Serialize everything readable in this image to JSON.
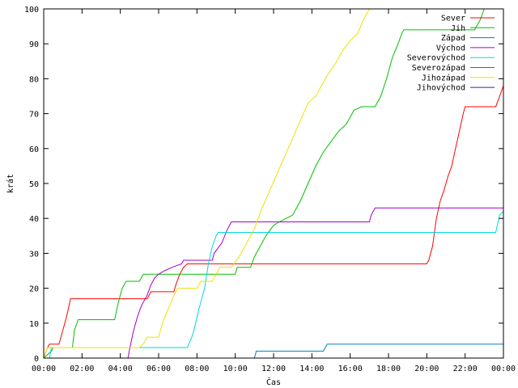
{
  "chart_data": {
    "type": "line",
    "xlabel": "Čas",
    "ylabel": "krát",
    "xlim": [
      0,
      24
    ],
    "ylim": [
      0,
      100
    ],
    "grid": false,
    "legend_position": "top-right",
    "x_ticks": [
      0,
      2,
      4,
      6,
      8,
      10,
      12,
      14,
      16,
      18,
      20,
      22,
      24
    ],
    "x_tick_labels": [
      "00:00",
      "02:00",
      "04:00",
      "06:00",
      "08:00",
      "10:00",
      "12:00",
      "14:00",
      "16:00",
      "18:00",
      "20:00",
      "22:00",
      "00:00"
    ],
    "y_ticks": [
      0,
      10,
      20,
      30,
      40,
      50,
      60,
      70,
      80,
      90,
      100
    ],
    "y_tick_labels": [
      "0",
      "10",
      "20",
      "30",
      "40",
      "50",
      "60",
      "70",
      "80",
      "90",
      "100"
    ],
    "series": [
      {
        "name": "Sever",
        "color": "#ff0000",
        "points": [
          [
            0,
            0
          ],
          [
            0.2,
            3
          ],
          [
            0.3,
            4
          ],
          [
            0.8,
            4
          ],
          [
            1.0,
            8
          ],
          [
            1.2,
            12
          ],
          [
            1.4,
            17
          ],
          [
            5.4,
            17
          ],
          [
            5.5,
            18
          ],
          [
            5.6,
            19
          ],
          [
            6.8,
            19
          ],
          [
            6.9,
            21
          ],
          [
            7.1,
            24
          ],
          [
            7.3,
            26
          ],
          [
            7.5,
            27
          ],
          [
            20.0,
            27
          ],
          [
            20.1,
            28
          ],
          [
            20.3,
            32
          ],
          [
            20.5,
            40
          ],
          [
            20.7,
            45
          ],
          [
            20.9,
            48
          ],
          [
            21.1,
            52
          ],
          [
            21.3,
            55
          ],
          [
            21.5,
            60
          ],
          [
            21.7,
            65
          ],
          [
            21.9,
            70
          ],
          [
            22.0,
            72
          ],
          [
            23.3,
            72
          ],
          [
            23.6,
            72
          ],
          [
            23.8,
            75
          ],
          [
            24.0,
            78
          ]
        ]
      },
      {
        "name": "Jih",
        "color": "#00c000",
        "points": [
          [
            0,
            0
          ],
          [
            0.4,
            2
          ],
          [
            0.5,
            3
          ],
          [
            1.5,
            3
          ],
          [
            1.6,
            8
          ],
          [
            1.8,
            11
          ],
          [
            3.7,
            11
          ],
          [
            3.9,
            16
          ],
          [
            4.1,
            20
          ],
          [
            4.3,
            22
          ],
          [
            5.0,
            22
          ],
          [
            5.2,
            24
          ],
          [
            10.0,
            24
          ],
          [
            10.1,
            26
          ],
          [
            10.8,
            26
          ],
          [
            11.0,
            29
          ],
          [
            11.3,
            32
          ],
          [
            11.6,
            35
          ],
          [
            12.0,
            38
          ],
          [
            12.3,
            39
          ],
          [
            13.0,
            41
          ],
          [
            13.4,
            45
          ],
          [
            13.8,
            50
          ],
          [
            14.2,
            55
          ],
          [
            14.6,
            59
          ],
          [
            15.0,
            62
          ],
          [
            15.4,
            65
          ],
          [
            15.8,
            67
          ],
          [
            16.2,
            71
          ],
          [
            16.6,
            72
          ],
          [
            17.3,
            72
          ],
          [
            17.6,
            75
          ],
          [
            17.9,
            80
          ],
          [
            18.2,
            86
          ],
          [
            18.5,
            90
          ],
          [
            18.7,
            93
          ],
          [
            18.8,
            94
          ],
          [
            22.5,
            94
          ],
          [
            22.8,
            97
          ],
          [
            23.0,
            100
          ]
        ]
      },
      {
        "name": "Západ",
        "color": "#0080c0",
        "points": [
          [
            11.0,
            0
          ],
          [
            11.1,
            2
          ],
          [
            14.6,
            2
          ],
          [
            14.7,
            3
          ],
          [
            14.8,
            4
          ],
          [
            24.0,
            4
          ]
        ]
      },
      {
        "name": "Východ",
        "color": "#a000d0",
        "points": [
          [
            4.4,
            0
          ],
          [
            4.5,
            3
          ],
          [
            4.7,
            8
          ],
          [
            4.9,
            12
          ],
          [
            5.1,
            15
          ],
          [
            5.4,
            18
          ],
          [
            5.6,
            21
          ],
          [
            5.8,
            23
          ],
          [
            6.0,
            24
          ],
          [
            6.3,
            25
          ],
          [
            6.7,
            26
          ],
          [
            7.2,
            27
          ],
          [
            7.3,
            28
          ],
          [
            8.8,
            28
          ],
          [
            8.9,
            30
          ],
          [
            9.3,
            33
          ],
          [
            9.6,
            37
          ],
          [
            9.8,
            39
          ],
          [
            17.0,
            39
          ],
          [
            17.1,
            41
          ],
          [
            17.3,
            43
          ],
          [
            24.0,
            43
          ]
        ]
      },
      {
        "name": "Severovýchod",
        "color": "#00d8d8",
        "points": [
          [
            0,
            0
          ],
          [
            0.3,
            0
          ],
          [
            0.4,
            3
          ],
          [
            7.5,
            3
          ],
          [
            7.8,
            7
          ],
          [
            8.1,
            14
          ],
          [
            8.4,
            20
          ],
          [
            8.6,
            27
          ],
          [
            8.8,
            32
          ],
          [
            9.0,
            35
          ],
          [
            9.1,
            36
          ],
          [
            23.6,
            36
          ],
          [
            23.8,
            41
          ],
          [
            24.0,
            42
          ]
        ]
      },
      {
        "name": "Severozápad",
        "color": "#c04000",
        "points": []
      },
      {
        "name": "Jihozápad",
        "color": "#f0e000",
        "points": [
          [
            0,
            0
          ],
          [
            0.2,
            3
          ],
          [
            5.0,
            3
          ],
          [
            5.2,
            4
          ],
          [
            5.4,
            6
          ],
          [
            6.0,
            6
          ],
          [
            6.2,
            10
          ],
          [
            6.5,
            14
          ],
          [
            6.8,
            18
          ],
          [
            7.0,
            20
          ],
          [
            8.0,
            20
          ],
          [
            8.2,
            22
          ],
          [
            8.8,
            22
          ],
          [
            9.0,
            24
          ],
          [
            9.2,
            26
          ],
          [
            9.8,
            26
          ],
          [
            10.2,
            29
          ],
          [
            10.6,
            33
          ],
          [
            11.0,
            37
          ],
          [
            11.4,
            43
          ],
          [
            11.8,
            48
          ],
          [
            12.2,
            53
          ],
          [
            12.6,
            58
          ],
          [
            13.0,
            63
          ],
          [
            13.4,
            68
          ],
          [
            13.8,
            73
          ],
          [
            14.2,
            75
          ],
          [
            14.5,
            78
          ],
          [
            14.8,
            81
          ],
          [
            15.2,
            84
          ],
          [
            15.6,
            88
          ],
          [
            16.0,
            91
          ],
          [
            16.4,
            93
          ],
          [
            16.7,
            97
          ],
          [
            17.0,
            100
          ]
        ]
      },
      {
        "name": "Jihovýchod",
        "color": "#2020c0",
        "points": []
      }
    ]
  }
}
